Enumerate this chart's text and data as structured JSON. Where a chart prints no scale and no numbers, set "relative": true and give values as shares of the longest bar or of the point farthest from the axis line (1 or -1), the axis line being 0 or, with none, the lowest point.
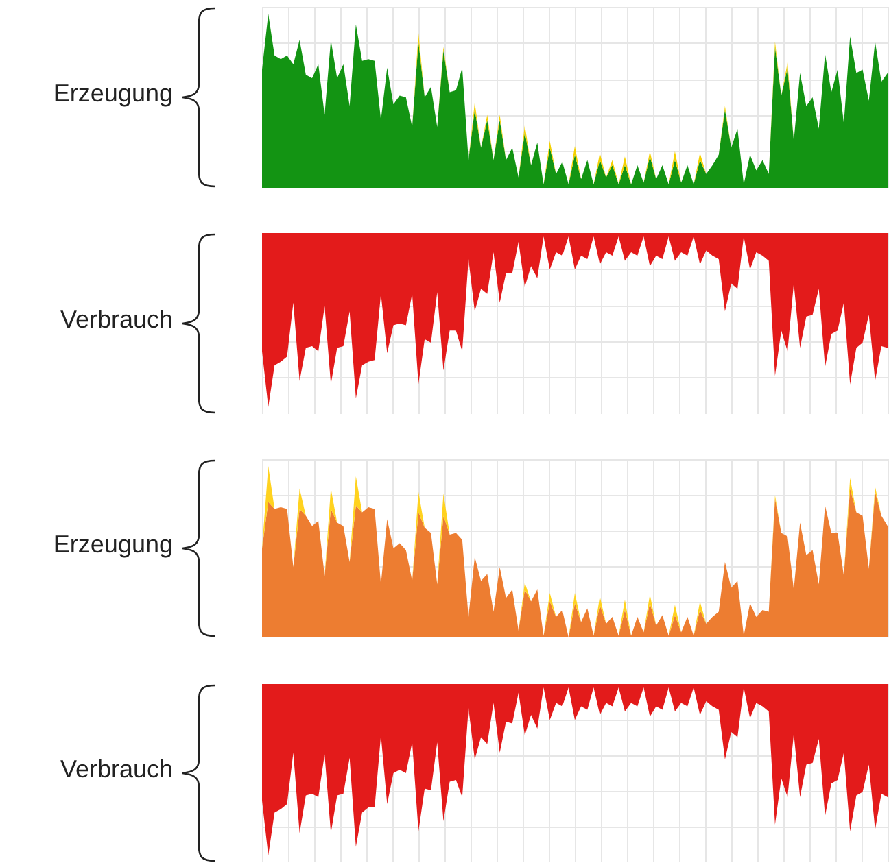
{
  "chart_data": [
    {
      "type": "area",
      "ylabel": "Erzeugung",
      "relative": true,
      "stacked": true,
      "grid": true,
      "marker": "none",
      "categories": [
        null,
        null,
        null,
        null,
        null,
        null,
        null,
        null,
        null,
        null,
        null,
        null,
        null,
        null,
        null,
        null,
        null,
        null,
        null,
        null,
        null,
        null,
        null,
        null,
        null,
        null,
        null,
        null,
        null,
        null,
        null,
        null,
        null,
        null,
        null,
        null,
        null,
        null,
        null,
        null,
        null,
        null,
        null,
        null,
        null,
        null,
        null,
        null,
        null,
        null,
        null,
        null,
        null,
        null,
        null,
        null,
        null,
        null,
        null,
        null,
        null,
        null,
        null,
        null,
        null,
        null,
        null,
        null,
        null,
        null,
        null,
        null,
        null,
        null,
        null,
        null,
        null,
        null,
        null,
        null,
        null,
        null,
        null,
        null,
        null,
        null,
        null,
        null,
        null,
        null,
        null,
        null,
        null,
        null,
        null,
        null,
        null,
        null,
        null,
        null,
        null
      ],
      "series": [
        {
          "color": "#139413",
          "values": [
            0.68,
            1,
            0.76,
            0.74,
            0.76,
            0.71,
            0.85,
            0.65,
            0.63,
            0.71,
            0.42,
            0.85,
            0.63,
            0.71,
            0.47,
            0.94,
            0.73,
            0.74,
            0.73,
            0.39,
            0.69,
            0.48,
            0.53,
            0.52,
            0.35,
            0.84,
            0.52,
            0.58,
            0.35,
            0.79,
            0.55,
            0.56,
            0.69,
            0.16,
            0.45,
            0.23,
            0.39,
            0.16,
            0.39,
            0.16,
            0.23,
            0.06,
            0.32,
            0.13,
            0.26,
            0.02,
            0.23,
            0.08,
            0.15,
            0.02,
            0.19,
            0.05,
            0.16,
            0.02,
            0.16,
            0.06,
            0.13,
            0.02,
            0.13,
            0.02,
            0.13,
            0.03,
            0.18,
            0.05,
            0.13,
            0.02,
            0.16,
            0.03,
            0.13,
            0.02,
            0.16,
            0.08,
            0.13,
            0.19,
            0.45,
            0.23,
            0.34,
            0.02,
            0.19,
            0.1,
            0.16,
            0.08,
            0.81,
            0.53,
            0.69,
            0.27,
            0.66,
            0.47,
            0.52,
            0.34,
            0.77,
            0.55,
            0.68,
            0.37,
            0.87,
            0.66,
            0.68,
            0.5,
            0.84,
            0.61,
            0.66
          ]
        },
        {
          "color": "#f5d000",
          "values": [
            0,
            0,
            0,
            0,
            0,
            0,
            0,
            0,
            0,
            0,
            0,
            0,
            0,
            0,
            0,
            0,
            0,
            0,
            0,
            0,
            0,
            0,
            0,
            0,
            0,
            0.05,
            0,
            0,
            0,
            0.02,
            0,
            0,
            0,
            0,
            0.04,
            0,
            0.03,
            0,
            0.03,
            0,
            0,
            0,
            0.04,
            0,
            0,
            0,
            0.04,
            0,
            0,
            0,
            0.05,
            0,
            0,
            0,
            0.04,
            0,
            0.03,
            0,
            0.05,
            0,
            0,
            0,
            0.03,
            0,
            0,
            0,
            0.05,
            0,
            0,
            0,
            0.04,
            0,
            0,
            0,
            0.02,
            0,
            0,
            0,
            0,
            0,
            0,
            0,
            0.03,
            0,
            0.03,
            0,
            0,
            0,
            0,
            0,
            0,
            0,
            0,
            0,
            0,
            0,
            0,
            0,
            0,
            0,
            0
          ]
        }
      ]
    },
    {
      "type": "area",
      "ylabel": "Verbrauch",
      "relative": true,
      "grid": true,
      "marker": "none",
      "categories": [
        null,
        null,
        null,
        null,
        null,
        null,
        null,
        null,
        null,
        null,
        null,
        null,
        null,
        null,
        null,
        null,
        null,
        null,
        null,
        null,
        null,
        null,
        null,
        null,
        null,
        null,
        null,
        null,
        null,
        null,
        null,
        null,
        null,
        null,
        null,
        null,
        null,
        null,
        null,
        null,
        null,
        null,
        null,
        null,
        null,
        null,
        null,
        null,
        null,
        null,
        null,
        null,
        null,
        null,
        null,
        null,
        null,
        null,
        null,
        null,
        null,
        null,
        null,
        null,
        null,
        null,
        null,
        null,
        null,
        null,
        null,
        null,
        null,
        null,
        null,
        null,
        null,
        null,
        null,
        null,
        null,
        null,
        null,
        null,
        null,
        null,
        null,
        null,
        null,
        null,
        null,
        null,
        null,
        null,
        null,
        null,
        null,
        null,
        null,
        null,
        null
      ],
      "series": [
        {
          "color": "#e31b1b",
          "values": [
            -0.68,
            -1,
            -0.76,
            -0.74,
            -0.71,
            -0.4,
            -0.85,
            -0.66,
            -0.65,
            -0.68,
            -0.42,
            -0.87,
            -0.66,
            -0.65,
            -0.45,
            -0.95,
            -0.76,
            -0.74,
            -0.73,
            -0.35,
            -0.69,
            -0.53,
            -0.52,
            -0.53,
            -0.35,
            -0.87,
            -0.61,
            -0.63,
            -0.34,
            -0.79,
            -0.56,
            -0.56,
            -0.68,
            -0.15,
            -0.45,
            -0.32,
            -0.35,
            -0.11,
            -0.4,
            -0.23,
            -0.23,
            -0.05,
            -0.31,
            -0.19,
            -0.26,
            -0.02,
            -0.21,
            -0.11,
            -0.13,
            -0.02,
            -0.21,
            -0.13,
            -0.15,
            -0.02,
            -0.18,
            -0.11,
            -0.13,
            -0.02,
            -0.16,
            -0.11,
            -0.13,
            -0.02,
            -0.19,
            -0.13,
            -0.15,
            -0.02,
            -0.16,
            -0.11,
            -0.13,
            -0.02,
            -0.18,
            -0.1,
            -0.13,
            -0.15,
            -0.45,
            -0.29,
            -0.32,
            -0.02,
            -0.21,
            -0.11,
            -0.13,
            -0.16,
            -0.82,
            -0.56,
            -0.68,
            -0.29,
            -0.66,
            -0.48,
            -0.47,
            -0.32,
            -0.77,
            -0.58,
            -0.56,
            -0.4,
            -0.87,
            -0.66,
            -0.63,
            -0.47,
            -0.85,
            -0.65,
            -0.66
          ]
        }
      ]
    },
    {
      "type": "area",
      "ylabel": "Erzeugung",
      "relative": true,
      "stacked": true,
      "grid": true,
      "marker": "none",
      "categories": [
        null,
        null,
        null,
        null,
        null,
        null,
        null,
        null,
        null,
        null,
        null,
        null,
        null,
        null,
        null,
        null,
        null,
        null,
        null,
        null,
        null,
        null,
        null,
        null,
        null,
        null,
        null,
        null,
        null,
        null,
        null,
        null,
        null,
        null,
        null,
        null,
        null,
        null,
        null,
        null,
        null,
        null,
        null,
        null,
        null,
        null,
        null,
        null,
        null,
        null,
        null,
        null,
        null,
        null,
        null,
        null,
        null,
        null,
        null,
        null,
        null,
        null,
        null,
        null,
        null,
        null,
        null,
        null,
        null,
        null,
        null,
        null,
        null,
        null,
        null,
        null,
        null,
        null,
        null,
        null,
        null,
        null,
        null,
        null,
        null,
        null,
        null,
        null,
        null,
        null,
        null,
        null,
        null,
        null,
        null,
        null,
        null,
        null,
        null,
        null,
        null
      ],
      "series": [
        {
          "color": "#ed7d31",
          "values": [
            0.52,
            0.79,
            0.75,
            0.76,
            0.75,
            0.41,
            0.75,
            0.71,
            0.65,
            0.68,
            0.36,
            0.75,
            0.67,
            0.65,
            0.44,
            0.77,
            0.73,
            0.76,
            0.75,
            0.31,
            0.69,
            0.52,
            0.55,
            0.51,
            0.33,
            0.73,
            0.64,
            0.61,
            0.31,
            0.71,
            0.6,
            0.61,
            0.57,
            0.12,
            0.47,
            0.33,
            0.37,
            0.15,
            0.41,
            0.23,
            0.28,
            0.04,
            0.28,
            0.21,
            0.28,
            0.01,
            0.21,
            0.12,
            0.16,
            0,
            0.2,
            0.09,
            0.17,
            0.01,
            0.19,
            0.08,
            0.12,
            0.01,
            0.16,
            0.01,
            0.12,
            0.03,
            0.2,
            0.07,
            0.13,
            0.01,
            0.13,
            0.03,
            0.12,
            0.01,
            0.16,
            0.08,
            0.12,
            0.15,
            0.44,
            0.29,
            0.33,
            0.01,
            0.2,
            0.12,
            0.16,
            0.15,
            0.81,
            0.61,
            0.59,
            0.28,
            0.67,
            0.48,
            0.51,
            0.31,
            0.77,
            0.61,
            0.61,
            0.36,
            0.87,
            0.73,
            0.71,
            0.4,
            0.85,
            0.71,
            0.65
          ]
        },
        {
          "color": "#ffd21f",
          "values": [
            0,
            0.21,
            0,
            0,
            0,
            0,
            0.12,
            0,
            0,
            0,
            0,
            0.12,
            0,
            0,
            0,
            0.17,
            0,
            0,
            0,
            0,
            0,
            0,
            0,
            0,
            0,
            0.12,
            0,
            0,
            0,
            0.13,
            0,
            0,
            0,
            0,
            0,
            0,
            0,
            0,
            0,
            0,
            0,
            0,
            0.04,
            0,
            0,
            0,
            0.05,
            0,
            0,
            0,
            0.06,
            0,
            0,
            0,
            0.05,
            0,
            0,
            0,
            0.06,
            0,
            0,
            0,
            0.05,
            0,
            0,
            0,
            0.06,
            0,
            0,
            0,
            0.05,
            0,
            0,
            0,
            0,
            0,
            0,
            0,
            0,
            0,
            0,
            0,
            0.02,
            0,
            0,
            0,
            0,
            0,
            0,
            0,
            0,
            0,
            0,
            0,
            0.06,
            0,
            0,
            0,
            0.03,
            0,
            0
          ]
        }
      ]
    },
    {
      "type": "area",
      "ylabel": "Verbrauch",
      "relative": true,
      "grid": true,
      "marker": "none",
      "categories": [
        null,
        null,
        null,
        null,
        null,
        null,
        null,
        null,
        null,
        null,
        null,
        null,
        null,
        null,
        null,
        null,
        null,
        null,
        null,
        null,
        null,
        null,
        null,
        null,
        null,
        null,
        null,
        null,
        null,
        null,
        null,
        null,
        null,
        null,
        null,
        null,
        null,
        null,
        null,
        null,
        null,
        null,
        null,
        null,
        null,
        null,
        null,
        null,
        null,
        null,
        null,
        null,
        null,
        null,
        null,
        null,
        null,
        null,
        null,
        null,
        null,
        null,
        null,
        null,
        null,
        null,
        null,
        null,
        null,
        null,
        null,
        null,
        null,
        null,
        null,
        null,
        null,
        null,
        null,
        null,
        null,
        null,
        null,
        null,
        null,
        null,
        null,
        null,
        null,
        null,
        null,
        null,
        null,
        null,
        null,
        null,
        null,
        null,
        null,
        null,
        null
      ],
      "series": [
        {
          "color": "#e31b1b",
          "values": [
            -0.68,
            -1,
            -0.75,
            -0.73,
            -0.7,
            -0.4,
            -0.87,
            -0.65,
            -0.64,
            -0.66,
            -0.41,
            -0.87,
            -0.65,
            -0.64,
            -0.43,
            -0.95,
            -0.75,
            -0.72,
            -0.72,
            -0.3,
            -0.7,
            -0.52,
            -0.5,
            -0.52,
            -0.34,
            -0.86,
            -0.61,
            -0.62,
            -0.34,
            -0.8,
            -0.57,
            -0.56,
            -0.66,
            -0.14,
            -0.44,
            -0.31,
            -0.35,
            -0.11,
            -0.4,
            -0.22,
            -0.23,
            -0.05,
            -0.3,
            -0.18,
            -0.26,
            -0.02,
            -0.21,
            -0.11,
            -0.13,
            -0.02,
            -0.21,
            -0.13,
            -0.15,
            -0.02,
            -0.18,
            -0.11,
            -0.13,
            -0.02,
            -0.16,
            -0.11,
            -0.13,
            -0.02,
            -0.19,
            -0.13,
            -0.15,
            -0.02,
            -0.16,
            -0.11,
            -0.13,
            -0.02,
            -0.18,
            -0.1,
            -0.13,
            -0.15,
            -0.44,
            -0.28,
            -0.31,
            -0.02,
            -0.2,
            -0.11,
            -0.13,
            -0.16,
            -0.82,
            -0.55,
            -0.66,
            -0.29,
            -0.66,
            -0.47,
            -0.46,
            -0.32,
            -0.77,
            -0.58,
            -0.56,
            -0.4,
            -0.86,
            -0.65,
            -0.63,
            -0.47,
            -0.85,
            -0.64,
            -0.66
          ]
        }
      ]
    }
  ]
}
